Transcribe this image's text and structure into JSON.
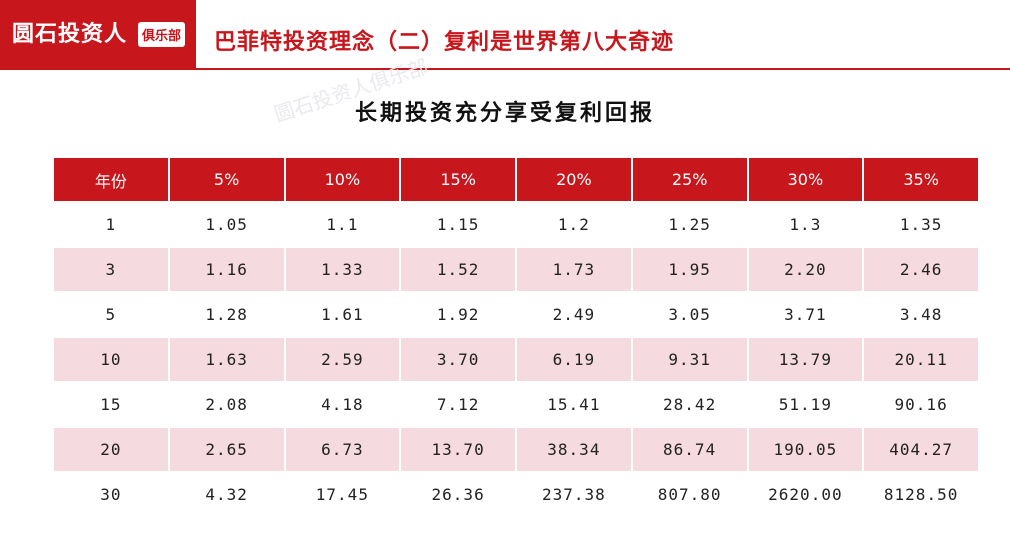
{
  "header": {
    "logo_text": "圆石投资人",
    "logo_badge": "俱乐部",
    "title": "巴菲特投资理念（二）复利是世界第八大奇迹"
  },
  "watermark": "圆石投资人俱乐部",
  "table": {
    "title": "长期投资充分享受复利回报",
    "columns": [
      "年份",
      "5%",
      "10%",
      "15%",
      "20%",
      "25%",
      "30%",
      "35%"
    ],
    "rows": [
      [
        "1",
        "1.05",
        "1.1",
        "1.15",
        "1.2",
        "1.25",
        "1.3",
        "1.35"
      ],
      [
        "3",
        "1.16",
        "1.33",
        "1.52",
        "1.73",
        "1.95",
        "2.20",
        "2.46"
      ],
      [
        "5",
        "1.28",
        "1.61",
        "1.92",
        "2.49",
        "3.05",
        "3.71",
        "3.48"
      ],
      [
        "10",
        "1.63",
        "2.59",
        "3.70",
        "6.19",
        "9.31",
        "13.79",
        "20.11"
      ],
      [
        "15",
        "2.08",
        "4.18",
        "7.12",
        "15.41",
        "28.42",
        "51.19",
        "90.16"
      ],
      [
        "20",
        "2.65",
        "6.73",
        "13.70",
        "38.34",
        "86.74",
        "190.05",
        "404.27"
      ],
      [
        "30",
        "4.32",
        "17.45",
        "26.36",
        "237.38",
        "807.80",
        "2620.00",
        "8128.50"
      ]
    ]
  },
  "colors": {
    "brand_red": "#c8161d",
    "alt_row": "#f5dadf"
  }
}
